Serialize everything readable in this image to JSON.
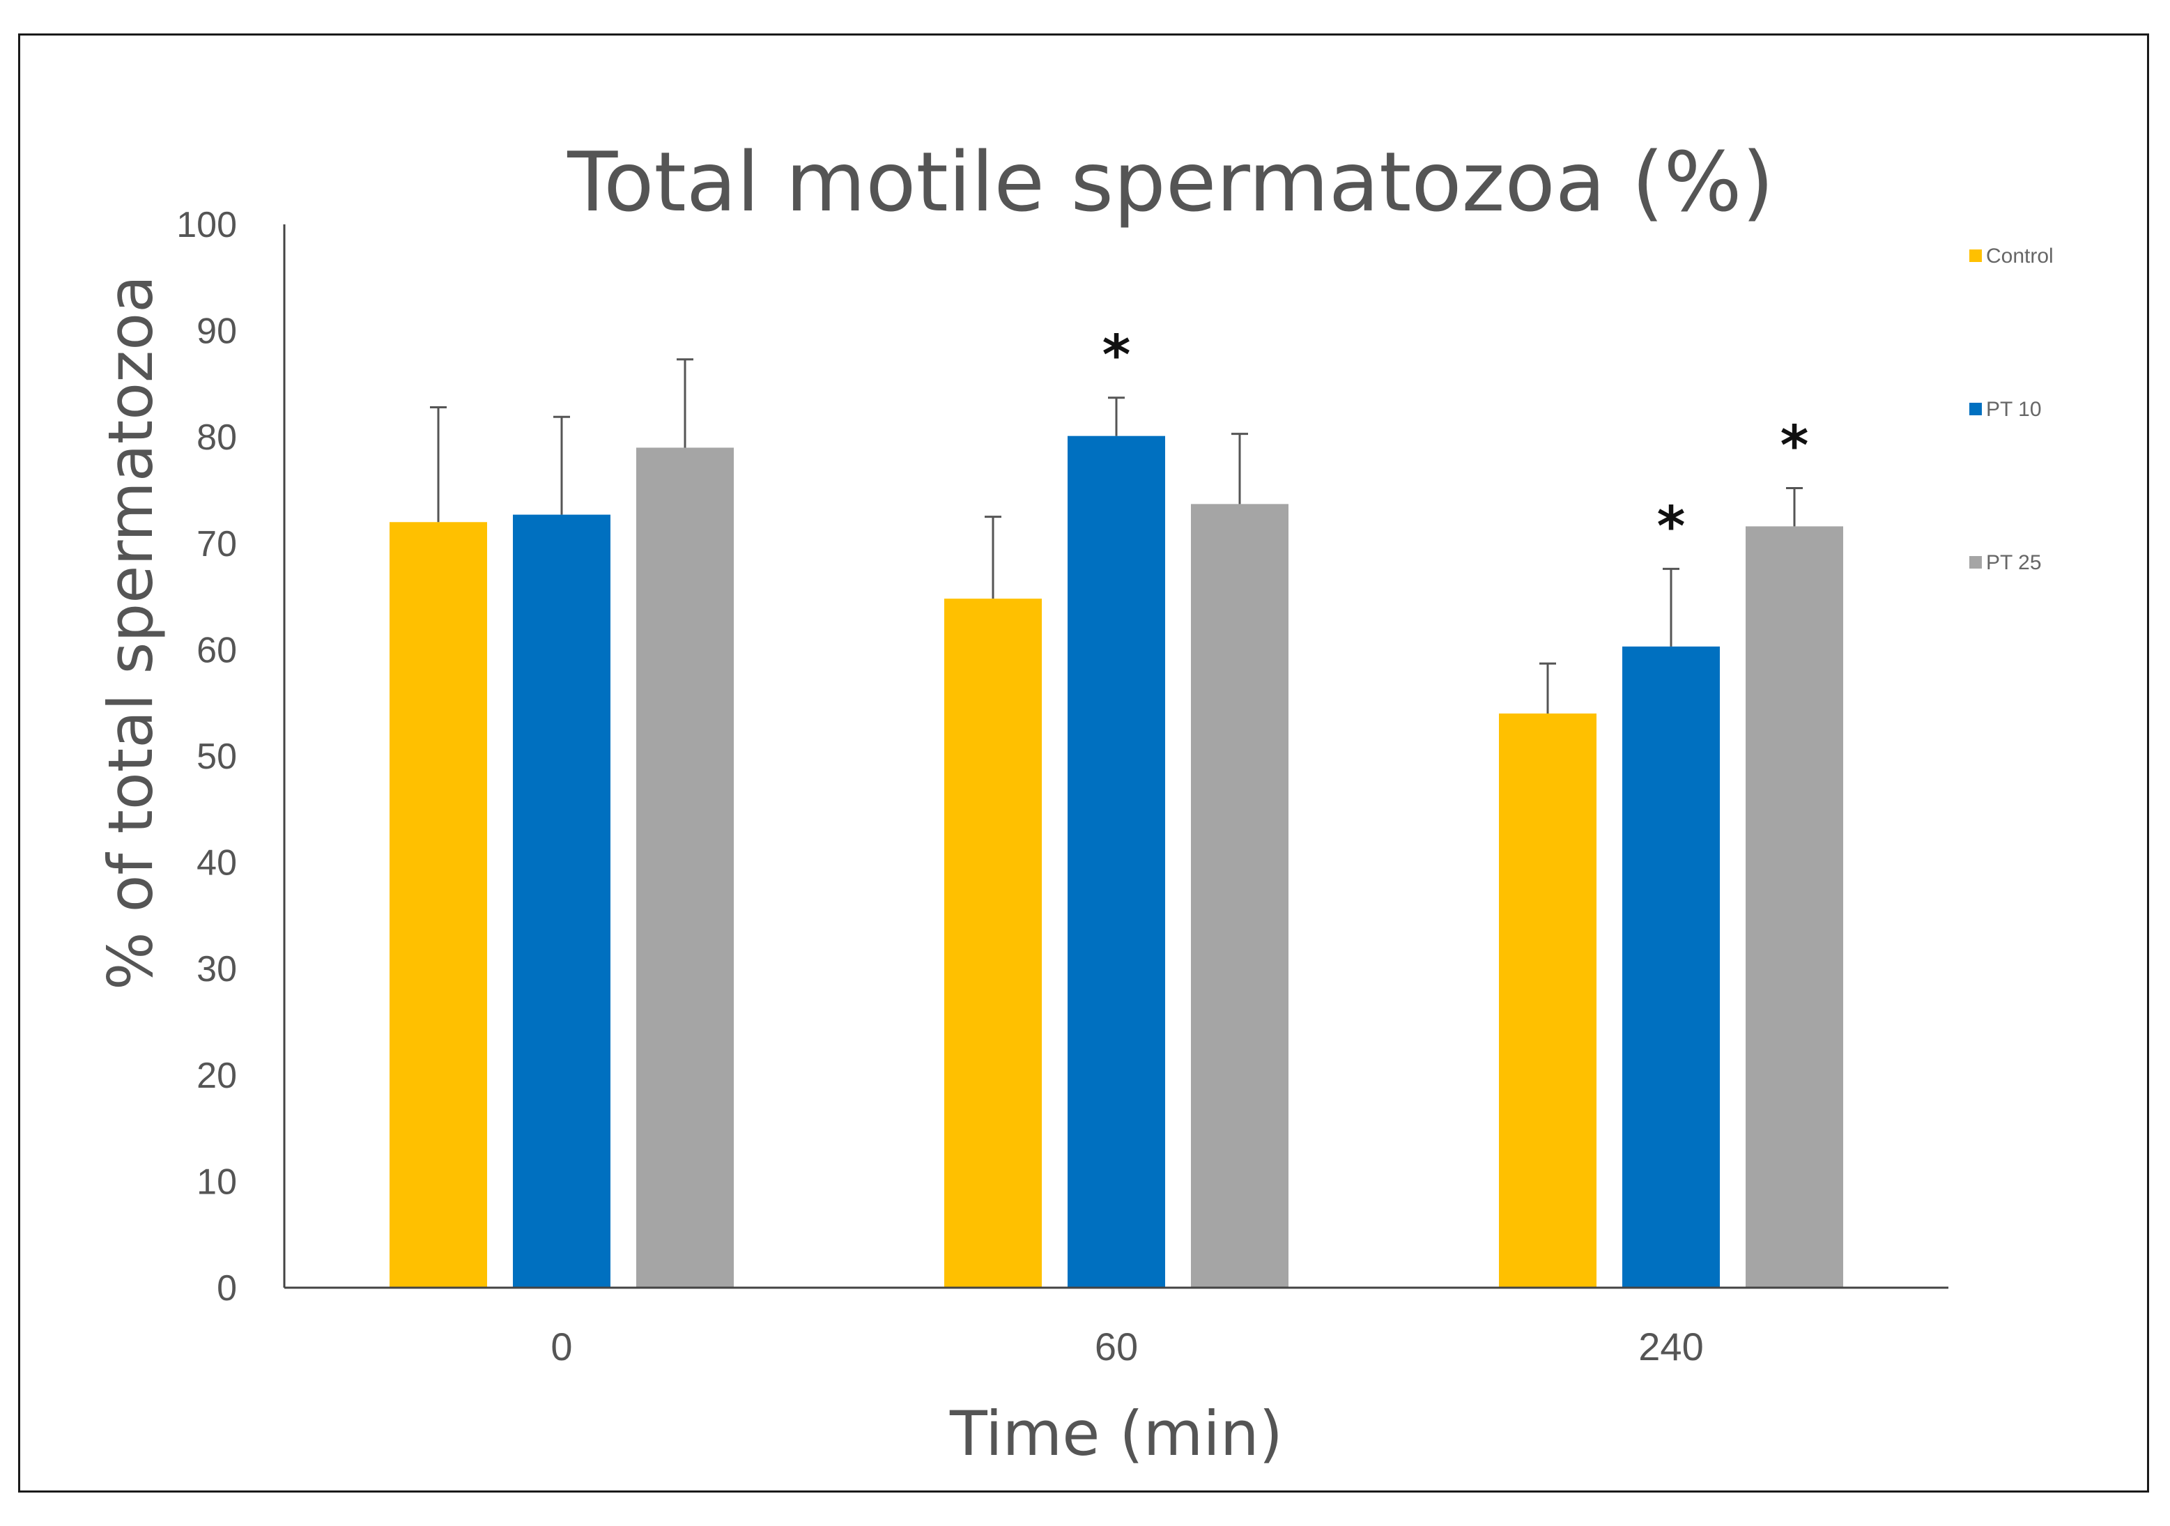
{
  "chart_data": {
    "type": "bar",
    "title": "Total motile spermatozoa (%)",
    "xlabel": "Time (min)",
    "ylabel": "% of total spermatozoa",
    "categories": [
      "0",
      "60",
      "240"
    ],
    "ylim": [
      0,
      100
    ],
    "yticks": [
      0,
      10,
      20,
      30,
      40,
      50,
      60,
      70,
      80,
      90,
      100
    ],
    "grid": false,
    "legend_position": "right",
    "series": [
      {
        "name": "Control",
        "color": "#FFC000",
        "values": [
          72,
          64.8,
          54
        ],
        "errors": [
          10.8,
          7.7,
          4.7
        ]
      },
      {
        "name": "PT 10",
        "color": "#0070C0",
        "values": [
          72.7,
          80.1,
          60.3
        ],
        "errors": [
          9.2,
          3.6,
          7.3
        ]
      },
      {
        "name": "PT 25",
        "color": "#A5A5A5",
        "values": [
          79,
          73.7,
          71.6
        ],
        "errors": [
          8.3,
          6.6,
          3.6
        ]
      }
    ],
    "annotations": [
      {
        "text": "*",
        "category": "60",
        "series": "PT 10"
      },
      {
        "text": "*",
        "category": "240",
        "series": "PT 10"
      },
      {
        "text": "*",
        "category": "240",
        "series": "PT 25"
      }
    ]
  }
}
